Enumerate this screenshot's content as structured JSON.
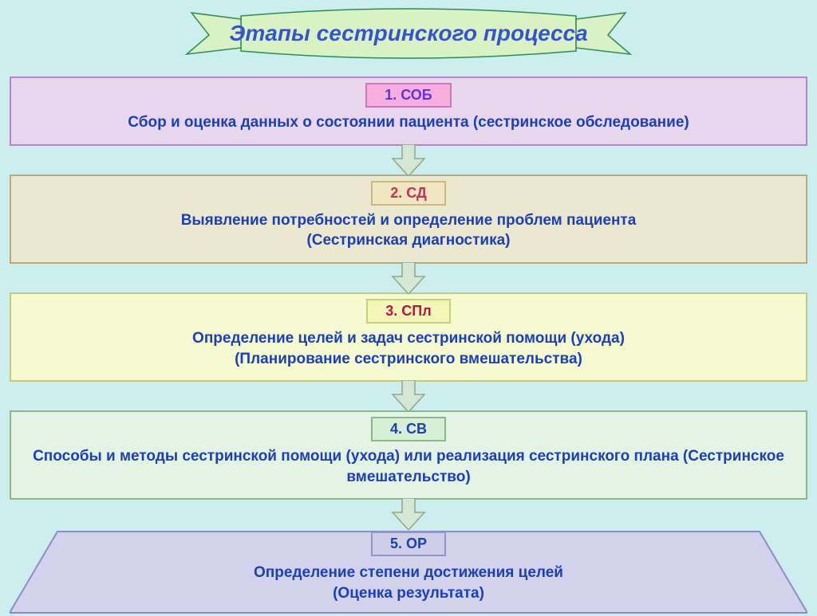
{
  "title": "Этапы сестринского процесса",
  "banner": {
    "fill": "#d9f2c4",
    "stroke": "#2e8b57",
    "text_color": "#3355cc"
  },
  "background_color": "#cceeee",
  "arrow": {
    "fill": "#d5e8d5",
    "stroke": "#88aa88"
  },
  "stages": [
    {
      "tag": "1. СОБ",
      "desc": "Сбор и оценка данных о состоянии пациента (сестринское обследование)",
      "box_fill": "#e8d5ee",
      "box_stroke": "#b684c9",
      "tag_fill": "#f5aee0",
      "tag_stroke": "#c87bb8",
      "tag_text_color": "#6633cc",
      "desc_color": "#1b3fb6"
    },
    {
      "tag": "2. СД",
      "desc": "Выявление потребностей и определение проблем пациента\n(Сестринская диагностика)",
      "box_fill": "#ece8cf",
      "box_stroke": "#b3ac7f",
      "tag_fill": "#f0e6c2",
      "tag_stroke": "#c9b97d",
      "tag_text_color": "#c03357",
      "desc_color": "#1b3fb6"
    },
    {
      "tag": "3. СПл",
      "desc": "Определение целей и задач сестринской помощи (ухода)\n(Планирование сестринского вмешательства)",
      "box_fill": "#f5fad1",
      "box_stroke": "#c1ca7e",
      "tag_fill": "#f2f6b7",
      "tag_stroke": "#c9cf7a",
      "tag_text_color": "#bd1343",
      "desc_color": "#1b3fb6"
    },
    {
      "tag": "4. СВ",
      "desc": "Способы и методы сестринской помощи (ухода) или реализация сестринского плана (Сестринское вмешательство)",
      "box_fill": "#e4f4e4",
      "box_stroke": "#88bb88",
      "tag_fill": "#d6f0d6",
      "tag_stroke": "#88bb88",
      "tag_text_color": "#1b3fb6",
      "desc_color": "#1b3fb6"
    },
    {
      "tag": "5. ОР",
      "desc": "Определение степени достижения целей\n(Оценка результата)",
      "box_fill": "#d2d2ec",
      "box_stroke": "#8c8cc4",
      "tag_fill": "#cfcfea",
      "tag_stroke": "#9595c9",
      "tag_text_color": "#1b3fb6",
      "desc_color": "#1b3fb6"
    }
  ]
}
